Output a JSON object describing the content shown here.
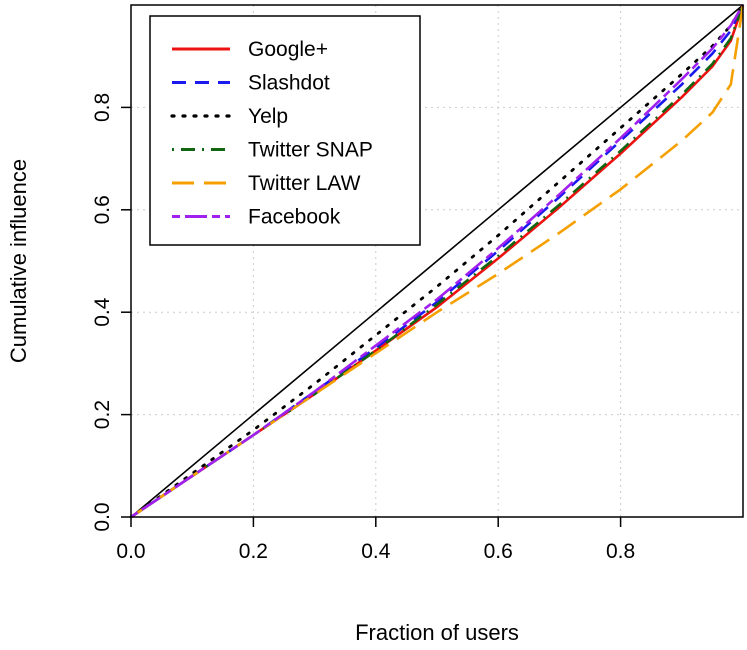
{
  "chart_data": {
    "type": "line",
    "title": "",
    "xlabel": "Fraction of users",
    "ylabel": "Cumulative influence",
    "xlim": [
      0,
      1
    ],
    "ylim": [
      0,
      1
    ],
    "x_ticks": [
      "0.0",
      "0.2",
      "0.4",
      "0.6",
      "0.8"
    ],
    "y_ticks": [
      "0.0",
      "0.2",
      "0.4",
      "0.6",
      "0.8"
    ],
    "grid": true,
    "legend_position": "top-left",
    "reference_line": {
      "x": [
        0,
        1
      ],
      "y": [
        0,
        1
      ],
      "color": "#000000"
    },
    "series": [
      {
        "name": "Google+",
        "color": "#ee1111",
        "dash": "solid",
        "x": [
          0,
          0.1,
          0.2,
          0.3,
          0.4,
          0.5,
          0.6,
          0.7,
          0.8,
          0.9,
          0.95,
          0.98,
          1.0
        ],
        "y": [
          0,
          0.08,
          0.16,
          0.24,
          0.325,
          0.41,
          0.505,
          0.605,
          0.71,
          0.82,
          0.88,
          0.93,
          1.0
        ]
      },
      {
        "name": "Slashdot",
        "color": "#1a1aee",
        "dash": "dashed",
        "x": [
          0,
          0.1,
          0.2,
          0.3,
          0.4,
          0.5,
          0.6,
          0.7,
          0.8,
          0.9,
          0.95,
          0.98,
          1.0
        ],
        "y": [
          0,
          0.08,
          0.16,
          0.245,
          0.33,
          0.42,
          0.52,
          0.625,
          0.735,
          0.845,
          0.905,
          0.95,
          1.0
        ]
      },
      {
        "name": "Yelp",
        "color": "#000000",
        "dash": "dotted",
        "x": [
          0,
          0.1,
          0.2,
          0.3,
          0.4,
          0.5,
          0.6,
          0.7,
          0.8,
          0.9,
          0.95,
          0.98,
          1.0
        ],
        "y": [
          0,
          0.085,
          0.17,
          0.26,
          0.355,
          0.45,
          0.55,
          0.655,
          0.76,
          0.865,
          0.92,
          0.96,
          1.0
        ]
      },
      {
        "name": "Twitter SNAP",
        "color": "#116611",
        "dash": "dotdash",
        "x": [
          0,
          0.1,
          0.2,
          0.3,
          0.4,
          0.5,
          0.6,
          0.7,
          0.8,
          0.9,
          0.95,
          0.98,
          1.0
        ],
        "y": [
          0,
          0.08,
          0.16,
          0.24,
          0.325,
          0.415,
          0.51,
          0.61,
          0.715,
          0.825,
          0.885,
          0.935,
          1.0
        ]
      },
      {
        "name": "Twitter LAW",
        "color": "#f5a000",
        "dash": "longdash",
        "x": [
          0,
          0.1,
          0.2,
          0.3,
          0.4,
          0.5,
          0.6,
          0.7,
          0.8,
          0.9,
          0.95,
          0.98,
          1.0
        ],
        "y": [
          0,
          0.08,
          0.16,
          0.24,
          0.32,
          0.4,
          0.475,
          0.555,
          0.64,
          0.735,
          0.79,
          0.845,
          1.0
        ]
      },
      {
        "name": "Facebook",
        "color": "#a020f0",
        "dash": "twodash",
        "x": [
          0,
          0.1,
          0.2,
          0.3,
          0.4,
          0.5,
          0.6,
          0.7,
          0.8,
          0.9,
          0.95,
          0.98,
          1.0
        ],
        "y": [
          0,
          0.08,
          0.16,
          0.245,
          0.335,
          0.425,
          0.525,
          0.63,
          0.74,
          0.855,
          0.915,
          0.96,
          1.0
        ]
      }
    ]
  }
}
